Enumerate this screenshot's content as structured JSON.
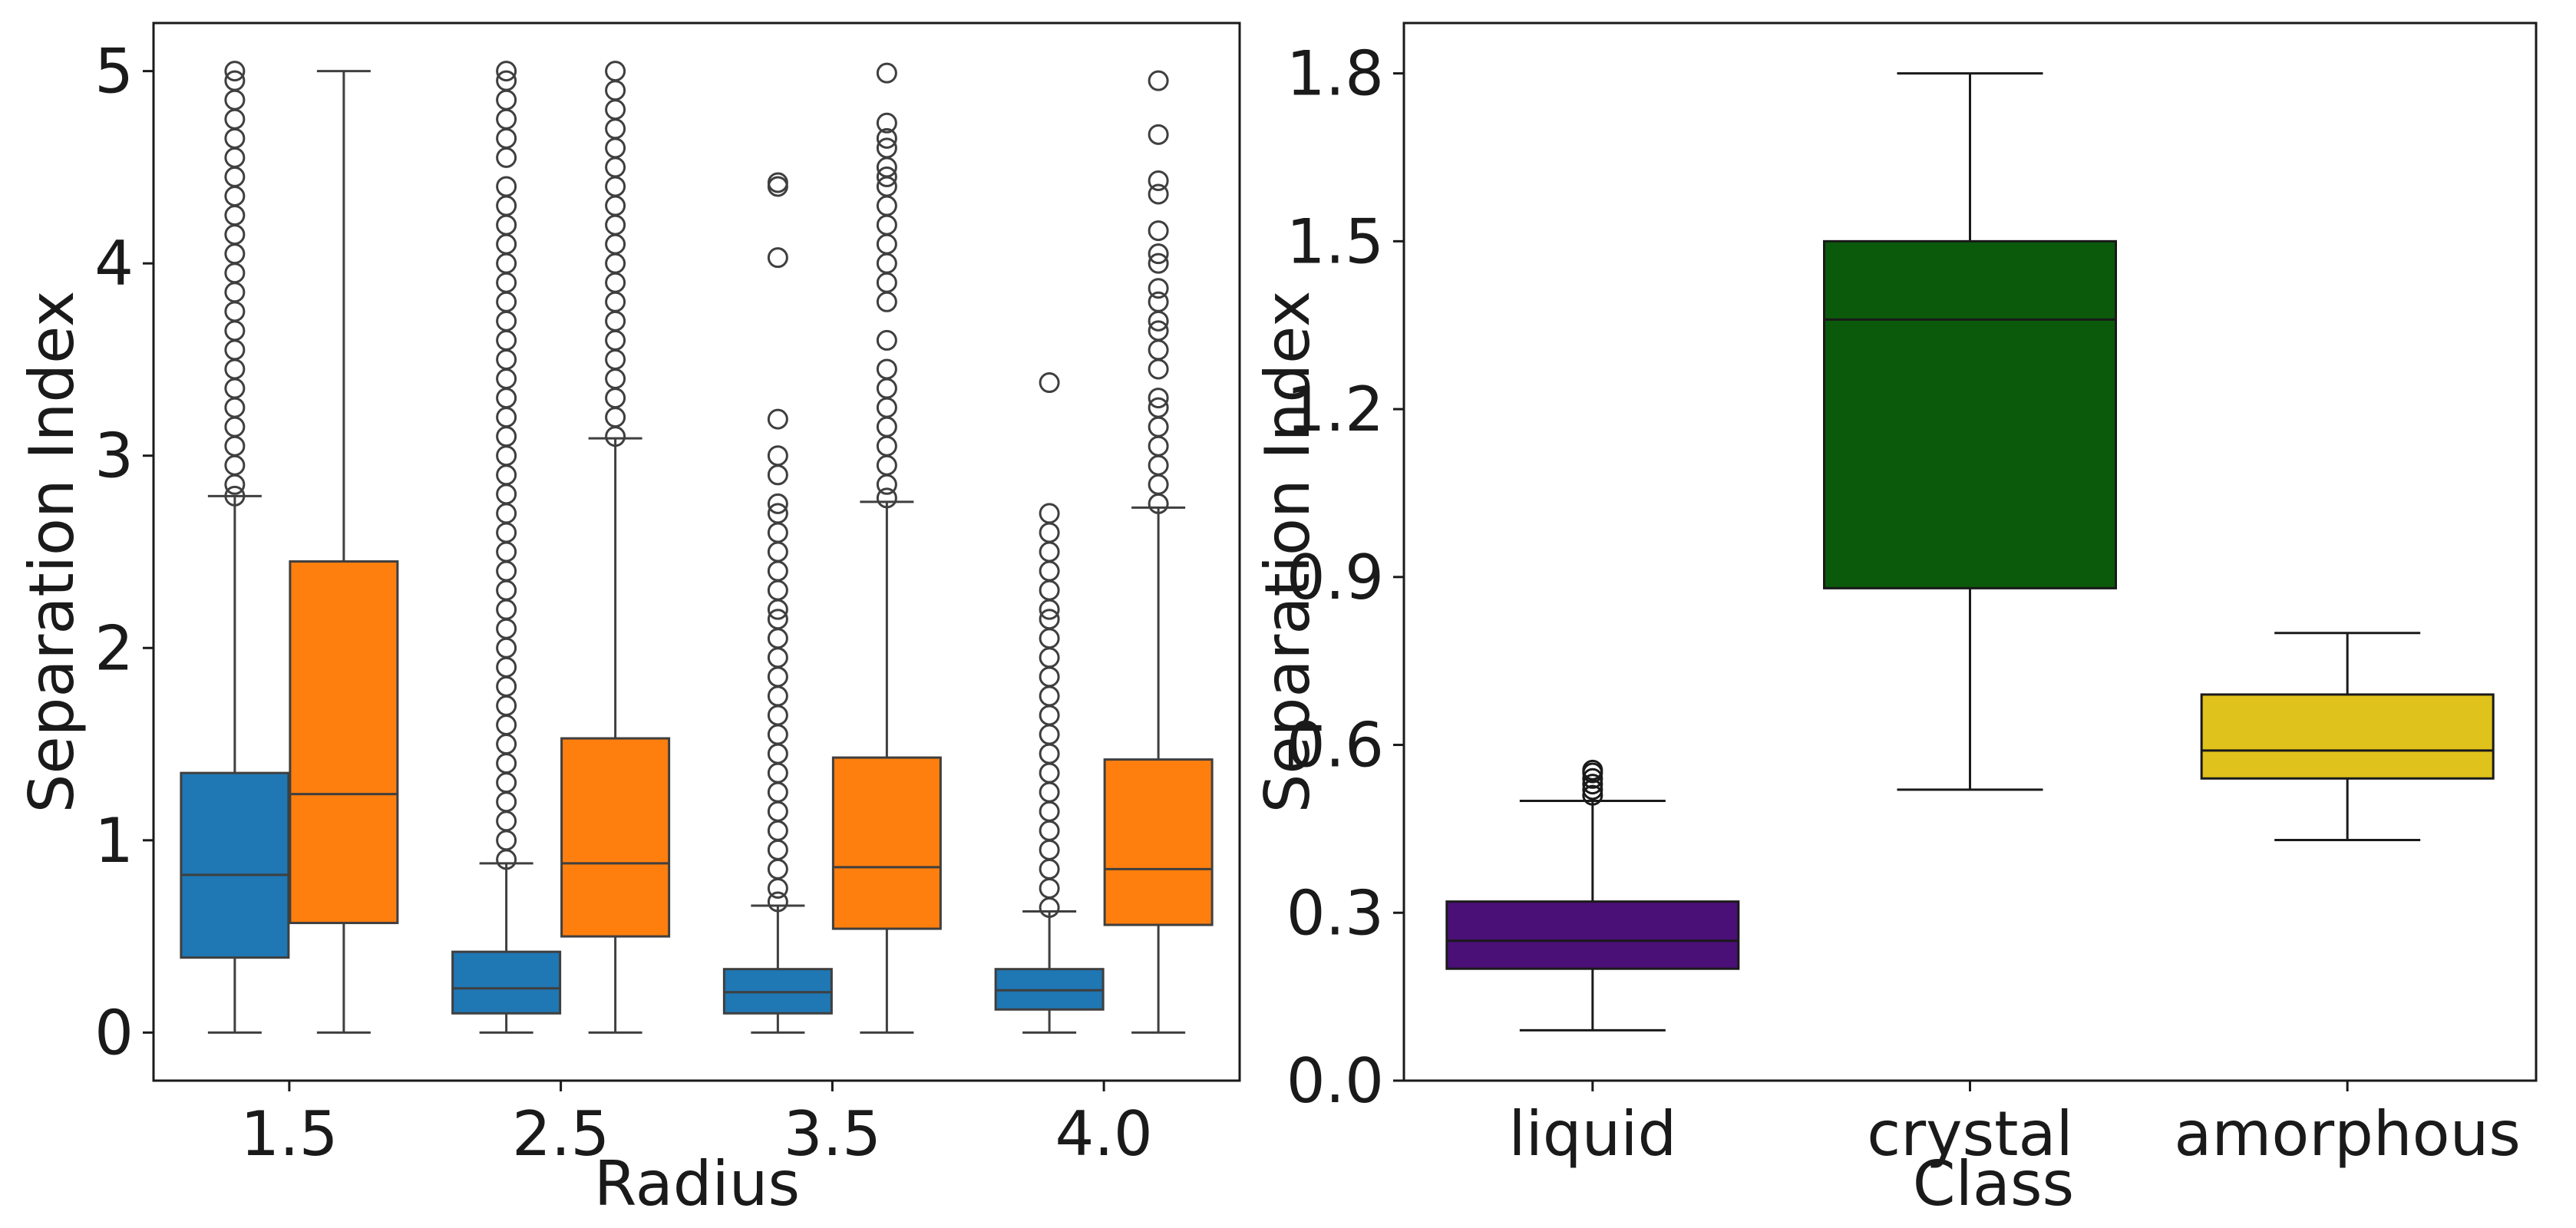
{
  "chart_data": [
    {
      "type": "box",
      "title": "",
      "xlabel": "Radius",
      "ylabel": "Separation Index",
      "categories": [
        "1.5",
        "2.5",
        "3.5",
        "4.0"
      ],
      "ylim": [
        -0.25,
        5.25
      ],
      "yticks": [
        0,
        1,
        2,
        3,
        4,
        5
      ],
      "grid": false,
      "legend": "none",
      "series": [
        {
          "color": "#1f77b4",
          "boxes": [
            {
              "whisker_low": 0.0,
              "q1": 0.39,
              "median": 0.82,
              "q3": 1.35,
              "whisker_high": 2.79,
              "fliers": [
                2.79,
                2.85,
                2.95,
                3.05,
                3.15,
                3.25,
                3.35,
                3.45,
                3.55,
                3.65,
                3.75,
                3.85,
                3.95,
                4.05,
                4.15,
                4.25,
                4.35,
                4.45,
                4.55,
                4.65,
                4.75,
                4.85,
                4.95,
                5.0
              ]
            },
            {
              "whisker_low": 0.0,
              "q1": 0.1,
              "median": 0.23,
              "q3": 0.42,
              "whisker_high": 0.88,
              "fliers": [
                0.9,
                1.0,
                1.1,
                1.2,
                1.3,
                1.4,
                1.5,
                1.6,
                1.7,
                1.8,
                1.9,
                2.0,
                2.1,
                2.2,
                2.3,
                2.4,
                2.5,
                2.6,
                2.7,
                2.8,
                2.9,
                3.0,
                3.1,
                3.2,
                3.3,
                3.4,
                3.5,
                3.6,
                3.7,
                3.8,
                3.9,
                4.0,
                4.1,
                4.2,
                4.3,
                4.4,
                4.55,
                4.65,
                4.75,
                4.85,
                4.95,
                5.0
              ]
            },
            {
              "whisker_low": 0.0,
              "q1": 0.1,
              "median": 0.21,
              "q3": 0.33,
              "whisker_high": 0.66,
              "fliers": [
                0.68,
                0.75,
                0.85,
                0.95,
                1.05,
                1.15,
                1.25,
                1.35,
                1.45,
                1.55,
                1.65,
                1.75,
                1.85,
                1.95,
                2.05,
                2.15,
                2.2,
                2.3,
                2.4,
                2.5,
                2.6,
                2.7,
                2.75,
                2.9,
                3.0,
                3.19,
                4.03,
                4.4,
                4.42
              ]
            },
            {
              "whisker_low": 0.0,
              "q1": 0.12,
              "median": 0.22,
              "q3": 0.33,
              "whisker_high": 0.63,
              "fliers": [
                0.65,
                0.75,
                0.85,
                0.95,
                1.05,
                1.15,
                1.25,
                1.35,
                1.45,
                1.55,
                1.65,
                1.75,
                1.85,
                1.95,
                2.05,
                2.15,
                2.2,
                2.3,
                2.4,
                2.5,
                2.6,
                2.7,
                3.38
              ]
            }
          ]
        },
        {
          "color": "#ff7f0e",
          "boxes": [
            {
              "whisker_low": 0.0,
              "q1": 0.57,
              "median": 1.24,
              "q3": 2.45,
              "whisker_high": 5.0,
              "fliers": []
            },
            {
              "whisker_low": 0.0,
              "q1": 0.5,
              "median": 0.88,
              "q3": 1.53,
              "whisker_high": 3.09,
              "fliers": [
                3.1,
                3.2,
                3.3,
                3.4,
                3.5,
                3.6,
                3.7,
                3.8,
                3.9,
                4.0,
                4.1,
                4.2,
                4.3,
                4.4,
                4.5,
                4.6,
                4.7,
                4.8,
                4.9,
                5.0
              ]
            },
            {
              "whisker_low": 0.0,
              "q1": 0.54,
              "median": 0.86,
              "q3": 1.43,
              "whisker_high": 2.76,
              "fliers": [
                2.78,
                2.85,
                2.95,
                3.05,
                3.15,
                3.25,
                3.35,
                3.45,
                3.6,
                3.8,
                3.9,
                4.0,
                4.1,
                4.2,
                4.3,
                4.4,
                4.45,
                4.5,
                4.6,
                4.65,
                4.73,
                4.99
              ]
            },
            {
              "whisker_low": 0.0,
              "q1": 0.56,
              "median": 0.85,
              "q3": 1.42,
              "whisker_high": 2.73,
              "fliers": [
                2.75,
                2.85,
                2.95,
                3.05,
                3.15,
                3.25,
                3.3,
                3.45,
                3.55,
                3.65,
                3.7,
                3.8,
                3.87,
                4.0,
                4.05,
                4.17,
                4.36,
                4.43,
                4.67,
                4.95
              ]
            }
          ]
        }
      ]
    },
    {
      "type": "box",
      "title": "",
      "xlabel": "Class",
      "ylabel": "Separation Index",
      "categories": [
        "liquid",
        "crystal",
        "amorphous"
      ],
      "ylim": [
        0.0,
        1.89
      ],
      "yticks": [
        "0.0",
        "0.3",
        "0.6",
        "0.9",
        "1.2",
        "1.5",
        "1.8"
      ],
      "grid": false,
      "legend": "none",
      "boxes": [
        {
          "color": "#4b0f78",
          "whisker_low": 0.09,
          "q1": 0.2,
          "median": 0.25,
          "q3": 0.32,
          "whisker_high": 0.5,
          "fliers": [
            0.51,
            0.52,
            0.53,
            0.54,
            0.55,
            0.555
          ]
        },
        {
          "color": "#0b5a0b",
          "whisker_low": 0.52,
          "q1": 0.88,
          "median": 1.36,
          "q3": 1.5,
          "whisker_high": 1.8,
          "fliers": []
        },
        {
          "color": "#e0c21c",
          "whisker_low": 0.43,
          "q1": 0.54,
          "median": 0.59,
          "q3": 0.69,
          "whisker_high": 0.8,
          "fliers": []
        }
      ]
    }
  ]
}
